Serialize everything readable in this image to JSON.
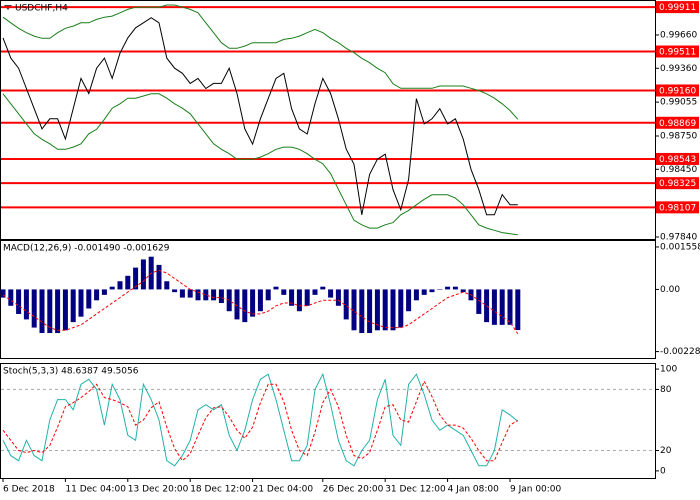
{
  "chart_data": [
    {
      "type": "line",
      "title": "USDCHF,H4",
      "ylim": [
        0.97831,
        0.99957
      ],
      "yticks": [
        {
          "value": 0.9966,
          "label": "0.99660"
        },
        {
          "value": 0.9936,
          "label": "0.99360"
        },
        {
          "value": 0.99055,
          "label": "0.99055"
        },
        {
          "value": 0.9875,
          "label": "0.98750"
        },
        {
          "value": 0.9845,
          "label": "0.98450"
        },
        {
          "value": 0.9784,
          "label": "0.97840"
        }
      ],
      "levels": [
        {
          "value": 0.99911,
          "label": "0.99911"
        },
        {
          "value": 0.99511,
          "label": "0.99511"
        },
        {
          "value": 0.9916,
          "label": "0.99160"
        },
        {
          "value": 0.98869,
          "label": "0.98869"
        },
        {
          "value": 0.98543,
          "label": "0.98543"
        },
        {
          "value": 0.98325,
          "label": "0.98325"
        },
        {
          "value": 0.98107,
          "label": "0.98107"
        }
      ],
      "level_color": "#ff0000",
      "series": [
        {
          "color": "#1a7f1a",
          "values": [
            0.9982,
            0.9977,
            0.9972,
            0.9968,
            0.9965,
            0.9963,
            0.9963,
            0.9968,
            0.9972,
            0.9974,
            0.9977,
            0.9977,
            0.998,
            0.9982,
            0.9983,
            0.9986,
            0.9989,
            0.9991,
            0.9991,
            0.9991,
            0.9991,
            0.9993,
            0.9993,
            0.9991,
            0.9989,
            0.9986,
            0.9977,
            0.9968,
            0.9959,
            0.9954,
            0.9954,
            0.9956,
            0.9959,
            0.9959,
            0.9959,
            0.9959,
            0.9962,
            0.9963,
            0.9965,
            0.9968,
            0.9971,
            0.9968,
            0.9963,
            0.9959,
            0.9954,
            0.995,
            0.9945,
            0.9941,
            0.9936,
            0.9932,
            0.9922,
            0.9918,
            0.9918,
            0.9918,
            0.9918,
            0.9918,
            0.992,
            0.992,
            0.992,
            0.992,
            0.9918,
            0.9916,
            0.9913,
            0.9909,
            0.9904,
            0.9898,
            0.989
          ]
        },
        {
          "color": "#1a7f1a",
          "values": [
            0.9913,
            0.9904,
            0.9895,
            0.9886,
            0.9877,
            0.9872,
            0.9868,
            0.9863,
            0.9863,
            0.9865,
            0.9868,
            0.9877,
            0.9881,
            0.989,
            0.99,
            0.9904,
            0.9909,
            0.9909,
            0.9911,
            0.9913,
            0.9913,
            0.9909,
            0.9904,
            0.99,
            0.9895,
            0.9886,
            0.9877,
            0.9868,
            0.9863,
            0.9859,
            0.9854,
            0.9854,
            0.9854,
            0.9856,
            0.9859,
            0.9863,
            0.9865,
            0.9865,
            0.9863,
            0.9859,
            0.9854,
            0.985,
            0.9841,
            0.9827,
            0.9813,
            0.9799,
            0.9795,
            0.9792,
            0.9792,
            0.9795,
            0.9797,
            0.9804,
            0.9808,
            0.9813,
            0.9818,
            0.9822,
            0.9822,
            0.9822,
            0.9819,
            0.9813,
            0.9804,
            0.9795,
            0.9792,
            0.979,
            0.9788,
            0.9787,
            0.9786
          ]
        },
        {
          "color": "#000000",
          "values": [
            0.99634,
            0.99452,
            0.99361,
            0.99178,
            0.98996,
            0.98814,
            0.98905,
            0.98905,
            0.98723,
            0.98996,
            0.99269,
            0.99133,
            0.99361,
            0.99452,
            0.99269,
            0.99497,
            0.99634,
            0.99725,
            0.9977,
            0.99816,
            0.9977,
            0.99452,
            0.99361,
            0.99315,
            0.99224,
            0.99269,
            0.99178,
            0.99224,
            0.99224,
            0.99361,
            0.99133,
            0.98814,
            0.98677,
            0.98905,
            0.99087,
            0.99269,
            0.99315,
            0.98996,
            0.98814,
            0.98768,
            0.99042,
            0.99269,
            0.99133,
            0.98905,
            0.98632,
            0.98495,
            0.9804,
            0.98404,
            0.98541,
            0.98586,
            0.98267,
            0.98085,
            0.98358,
            0.99087,
            0.98859,
            0.98905,
            0.98996,
            0.98859,
            0.98905,
            0.98723,
            0.9845,
            0.98267,
            0.9804,
            0.9804,
            0.98222,
            0.98131,
            0.98131
          ]
        }
      ]
    },
    {
      "type": "bar",
      "title": "MACD(12,26,9) -0.001490 -0.001629",
      "ylim": [
        -0.00248,
        0.00174
      ],
      "yticks": [
        0.001558,
        {
          "value": 0,
          "label": "0.00"
        },
        -0.002281
      ],
      "series": [
        {
          "color": "#000080",
          "values": [
            -0.0003,
            -0.0006,
            -0.0009,
            -0.0011,
            -0.0014,
            -0.0016,
            -0.0016,
            -0.0016,
            -0.0015,
            -0.0012,
            -0.001,
            -0.0007,
            -0.0004,
            -0.0002,
            0.0001,
            0.0003,
            0.0005,
            0.0008,
            0.0011,
            0.0012,
            0.0009,
            0.0003,
            -0.0001,
            -0.0003,
            -0.0003,
            -0.0004,
            -0.0004,
            -0.0004,
            -0.0005,
            -0.0008,
            -0.0011,
            -0.0012,
            -0.001,
            -0.0008,
            -0.0004,
            0.0001,
            -0.0002,
            -0.0006,
            -0.0008,
            -0.0006,
            -0.0002,
            0.0001,
            -0.0003,
            -0.0006,
            -0.0011,
            -0.0015,
            -0.0016,
            -0.0016,
            -0.0015,
            -0.0015,
            -0.0015,
            -0.0014,
            -0.0008,
            -0.0004,
            -0.0002,
            -0.0001,
            0,
            0.0001,
            0.0001,
            -0.0001,
            -0.0004,
            -0.0009,
            -0.0012,
            -0.0013,
            -0.0013,
            -0.0013,
            -0.00149
          ]
        },
        {
          "type": "line",
          "dashed": true,
          "color": "#ff0000",
          "values": [
            -0.0002,
            -0.0004,
            -0.0006,
            -0.0008,
            -0.001,
            -0.0012,
            -0.0014,
            -0.0015,
            -0.0015,
            -0.0014,
            -0.0013,
            -0.0011,
            -0.0009,
            -0.0007,
            -0.0005,
            -0.0003,
            -0.0001,
            0.0001,
            0.0003,
            0.0006,
            0.0007,
            0.0006,
            0.0004,
            0.0002,
            0,
            -0.0001,
            -0.0002,
            -0.0003,
            -0.0003,
            -0.0004,
            -0.0006,
            -0.0008,
            -0.0009,
            -0.0009,
            -0.0008,
            -0.0006,
            -0.0005,
            -0.0005,
            -0.0006,
            -0.0006,
            -0.0005,
            -0.0004,
            -0.0004,
            -0.0004,
            -0.0006,
            -0.0008,
            -0.001,
            -0.0012,
            -0.0013,
            -0.0014,
            -0.0014,
            -0.0014,
            -0.0013,
            -0.0011,
            -0.0009,
            -0.0007,
            -0.0005,
            -0.0003,
            -0.0002,
            -0.0001,
            -0.0002,
            -0.0004,
            -0.0006,
            -0.0008,
            -0.001,
            -0.0012,
            -0.001629
          ]
        }
      ]
    },
    {
      "type": "line",
      "title": "Stoch(5,3,3) 48.6387 49.5056",
      "ylim": [
        -6,
        104
      ],
      "yticks": [
        100,
        80,
        20,
        0
      ],
      "levels": [
        80,
        20
      ],
      "categories": [
        "6 Dec 2018",
        null,
        null,
        null,
        null,
        null,
        null,
        null,
        "11 Dec 04:00",
        null,
        null,
        null,
        null,
        null,
        null,
        null,
        "13 Dec 20:00",
        null,
        null,
        null,
        null,
        null,
        null,
        null,
        "18 Dec 12:00",
        null,
        null,
        null,
        null,
        null,
        null,
        null,
        "21 Dec 04:00",
        null,
        null,
        null,
        null,
        null,
        null,
        null,
        null,
        "26 Dec 20:00",
        null,
        null,
        null,
        null,
        null,
        null,
        null,
        "31 Dec 12:00",
        null,
        null,
        null,
        null,
        null,
        null,
        null,
        "4 Jan 08:00",
        null,
        null,
        null,
        null,
        null,
        null,
        null,
        "9 Jan 00:00",
        null
      ],
      "series": [
        {
          "color": "#20b2aa",
          "values": [
            30,
            15,
            10,
            30,
            15,
            10,
            50,
            70,
            70,
            60,
            85,
            90,
            80,
            45,
            85,
            70,
            35,
            30,
            85,
            70,
            50,
            10,
            5,
            15,
            30,
            60,
            65,
            60,
            65,
            35,
            20,
            40,
            70,
            90,
            95,
            70,
            40,
            10,
            10,
            25,
            80,
            95,
            65,
            30,
            10,
            5,
            20,
            30,
            70,
            90,
            35,
            25,
            85,
            95,
            75,
            50,
            40,
            45,
            40,
            35,
            20,
            5,
            5,
            20,
            60,
            55,
            48.6387
          ]
        },
        {
          "dashed": true,
          "color": "#ff0000",
          "values": [
            40,
            30,
            20,
            18,
            20,
            18,
            25,
            43,
            63,
            67,
            72,
            78,
            85,
            72,
            70,
            67,
            63,
            45,
            50,
            62,
            68,
            43,
            22,
            10,
            17,
            35,
            52,
            62,
            63,
            53,
            40,
            32,
            43,
            67,
            85,
            85,
            68,
            40,
            20,
            15,
            38,
            67,
            80,
            63,
            35,
            15,
            12,
            18,
            40,
            63,
            65,
            50,
            48,
            68,
            88,
            73,
            55,
            45,
            45,
            42,
            32,
            20,
            10,
            10,
            28,
            45,
            49.5056
          ]
        }
      ]
    }
  ]
}
